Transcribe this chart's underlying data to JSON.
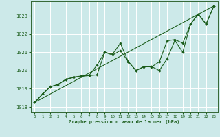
{
  "xlabel": "Graphe pression niveau de la mer (hPa)",
  "background_color": "#cce9e9",
  "grid_color": "#ffffff",
  "line_color": "#1a5c1a",
  "xlim": [
    -0.5,
    23.5
  ],
  "ylim": [
    1017.7,
    1023.8
  ],
  "yticks": [
    1018,
    1019,
    1020,
    1021,
    1022,
    1023
  ],
  "xticks": [
    0,
    1,
    2,
    3,
    4,
    5,
    6,
    7,
    8,
    9,
    10,
    11,
    12,
    13,
    14,
    15,
    16,
    17,
    18,
    19,
    20,
    21,
    22,
    23
  ],
  "line1_x": [
    0,
    1,
    2,
    3,
    4,
    5,
    6,
    7,
    8,
    9,
    10,
    11,
    12,
    13,
    14,
    15,
    16,
    17,
    18,
    19,
    20,
    21,
    22,
    23
  ],
  "line1_y": [
    1018.25,
    1018.7,
    1019.1,
    1019.25,
    1019.5,
    1019.62,
    1019.68,
    1019.72,
    1019.76,
    1021.0,
    1020.85,
    1021.1,
    1020.5,
    1020.0,
    1020.2,
    1020.22,
    1020.0,
    1020.65,
    1021.65,
    1021.0,
    1022.55,
    1023.1,
    1022.55,
    1023.55
  ],
  "line2_x": [
    0,
    1,
    2,
    3,
    4,
    5,
    6,
    7,
    8,
    9,
    10,
    11,
    12,
    13,
    14,
    15,
    16,
    17,
    18,
    19,
    20,
    21,
    22,
    23
  ],
  "line2_y": [
    1018.25,
    1018.7,
    1019.12,
    1019.22,
    1019.52,
    1019.64,
    1019.7,
    1019.74,
    1020.3,
    1021.0,
    1020.9,
    1021.5,
    1020.5,
    1020.0,
    1020.22,
    1020.2,
    1020.48,
    1021.63,
    1021.7,
    1021.5,
    1022.55,
    1023.1,
    1022.55,
    1023.55
  ],
  "trend_x": [
    0,
    23
  ],
  "trend_y": [
    1018.25,
    1023.55
  ]
}
